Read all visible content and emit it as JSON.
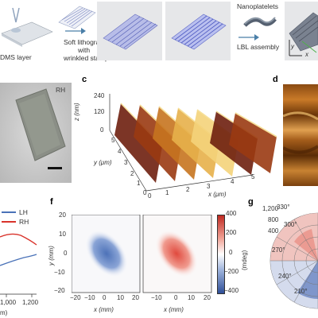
{
  "panel_a": {
    "step1_label": "DMS layer",
    "step2_label_lines": [
      "Soft lithography",
      "with",
      "wrinkled stamp"
    ],
    "step4_label_top": "Nanoplatelets",
    "step4_label_bottom": "LBL assembly",
    "axis_x": "x",
    "axis_y": "y"
  },
  "panel_b": {
    "tag": "RH"
  },
  "panel_c": {
    "letter": "c",
    "z_label": "z (nm)",
    "z_ticks": [
      "240",
      "120",
      "0"
    ],
    "y_label": "y (μm)",
    "y_ticks": [
      "5",
      "4",
      "3",
      "2",
      "1",
      "0"
    ],
    "x_label": "x (μm)",
    "x_ticks": [
      "0",
      "1",
      "2",
      "3",
      "4",
      "5"
    ]
  },
  "panel_d": {
    "letter": "d"
  },
  "panel_e": {
    "legend": [
      {
        "label": "LH",
        "color": "#4a72b8"
      },
      {
        "label": "RH",
        "color": "#d9332b"
      }
    ],
    "x_ticks": [
      "1,000",
      "1,200"
    ],
    "x_label_fragment": "m)"
  },
  "panel_f": {
    "letter": "f",
    "y_label": "y (mm)",
    "y_ticks": [
      "20",
      "10",
      "0",
      "−10",
      "−20"
    ],
    "x_label": "x (mm)",
    "x_ticks_left": [
      "−20",
      "−10",
      "0",
      "10",
      "20"
    ],
    "x_ticks_right": [
      "−10",
      "0",
      "10",
      "20"
    ],
    "colorbar_ticks": [
      "400",
      "200",
      "0",
      "−200",
      "−400"
    ],
    "colorbar_label": "(mdeg)"
  },
  "panel_g": {
    "letter": "g",
    "radial_ticks": [
      "1,200",
      "800",
      "400"
    ],
    "angle_labels": [
      "330°",
      "300°",
      "270°",
      "240°",
      "210°"
    ]
  }
}
